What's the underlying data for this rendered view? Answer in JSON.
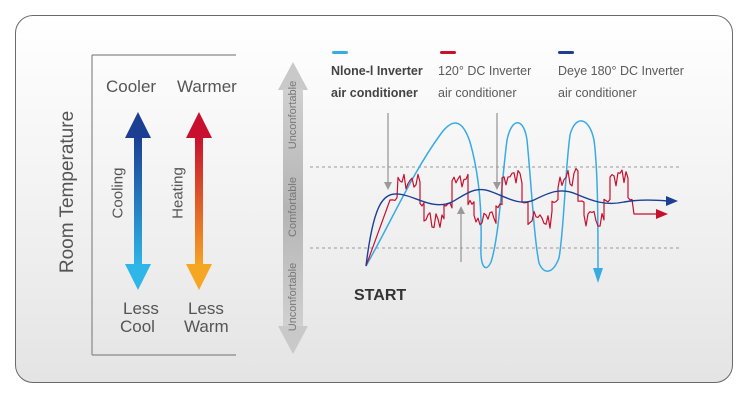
{
  "left_panel": {
    "room_temperature": "Room Temperature",
    "cooler": "Cooler",
    "warmer": "Warmer",
    "cooling": "Cooling",
    "heating": "Heating",
    "less_cool": [
      "Less",
      "Cool"
    ],
    "less_warm": [
      "Less",
      "Warm"
    ]
  },
  "comfort_axis": {
    "top": "Unconfortable",
    "middle": "Comfortable",
    "bottom": "Unconfortable"
  },
  "legend": [
    {
      "line1": "Nlone-l Inverter",
      "line2": "air conditioner",
      "color": "#39abe3",
      "bold": true
    },
    {
      "line1": "120° DC Inverter",
      "line2": "air conditioner",
      "color": "#c8102e",
      "bold": false
    },
    {
      "line1": "Deye 180° DC Inverter",
      "line2": "air conditioner",
      "color": "#1c3f94",
      "bold": false
    }
  ],
  "start_label": "START",
  "colors": {
    "cooling_top": "#1c3f94",
    "cooling_bottom": "#2fb6e8",
    "heating_top": "#c8102e",
    "heating_bottom": "#f5a623"
  }
}
